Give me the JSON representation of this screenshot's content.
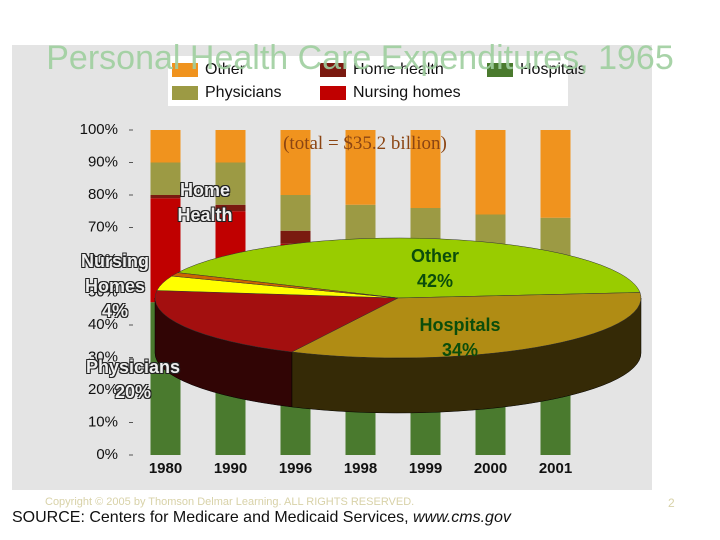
{
  "chart_data": [
    {
      "type": "stacked-bar",
      "categories": [
        "1980",
        "1990",
        "1996",
        "1998",
        "1999",
        "2000",
        "2001"
      ],
      "series": [
        {
          "name": "Hospitals",
          "color": "#4a7a2e",
          "values": [
            47,
            45,
            40,
            38,
            37,
            38,
            38
          ]
        },
        {
          "name": "Nursing homes",
          "color": "#c00000",
          "values": [
            32,
            30,
            25,
            25,
            26,
            18,
            20
          ]
        },
        {
          "name": "Home health",
          "color": "#7a1a10",
          "values": [
            1,
            2,
            4,
            3,
            3,
            3,
            2
          ]
        },
        {
          "name": "Physicians",
          "color": "#9c9a44",
          "values": [
            10,
            13,
            11,
            11,
            10,
            15,
            13
          ]
        },
        {
          "name": "Other",
          "color": "#f0931e",
          "values": [
            10,
            10,
            20,
            23,
            24,
            26,
            27
          ]
        }
      ],
      "ylim": [
        0,
        100
      ],
      "yticks": [
        {
          "value": 0,
          "label": "0%"
        },
        {
          "value": 10,
          "label": "10%"
        },
        {
          "value": 20,
          "label": "20%"
        },
        {
          "value": 30,
          "label": "30%"
        },
        {
          "value": 40,
          "label": "40%"
        },
        {
          "value": 50,
          "label": "50%"
        },
        {
          "value": 60,
          "label": "60%"
        },
        {
          "value": 70,
          "label": "70%"
        },
        {
          "value": 80,
          "label": "80%"
        },
        {
          "value": 90,
          "label": "90%"
        },
        {
          "value": 100,
          "label": "100%"
        }
      ]
    },
    {
      "type": "pie",
      "title": "Personal Health Care Expenditures, 1965",
      "subtitle": "(total = $35.2 billion)",
      "categories": [
        "Other",
        "Hospitals",
        "Physicians",
        "Nursing Homes",
        "Home Health"
      ],
      "values": [
        42,
        34,
        20,
        4,
        1
      ],
      "value_labels": [
        "42%",
        "34%",
        "20%",
        "4%",
        null
      ],
      "colors": [
        "#99cc00",
        "#b08c14",
        "#a30f0f",
        "#ffff00",
        "#cc6600"
      ]
    }
  ],
  "footer": {
    "copyright": "Copyright © 2005 by Thomson Delmar Learning. ALL RIGHTS RESERVED.",
    "page": "2",
    "source": "SOURCE: Centers for Medicare and Medicaid Services,",
    "url": "www.cms.gov"
  }
}
